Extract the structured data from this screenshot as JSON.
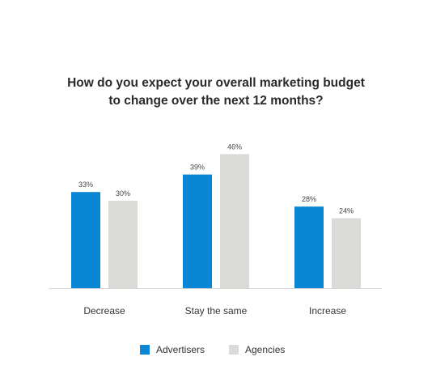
{
  "chart_data": {
    "type": "bar",
    "title_lines": [
      "How do you expect your overall marketing budget",
      "to change over the next 12 months?"
    ],
    "categories": [
      "Decrease",
      "Stay the same",
      "Increase"
    ],
    "series": [
      {
        "name": "Advertisers",
        "values": [
          33,
          39,
          28
        ],
        "labels": [
          "33%",
          "39%",
          "28%"
        ],
        "color": "#0a87d4"
      },
      {
        "name": "Agencies",
        "values": [
          30,
          46,
          24
        ],
        "labels": [
          "30%",
          "46%",
          "24%"
        ],
        "color": "#dadad6"
      }
    ],
    "ylim": [
      0,
      50
    ],
    "grid": false,
    "legend_position": "bottom-center",
    "baseline_color": "#d6d6d6"
  }
}
